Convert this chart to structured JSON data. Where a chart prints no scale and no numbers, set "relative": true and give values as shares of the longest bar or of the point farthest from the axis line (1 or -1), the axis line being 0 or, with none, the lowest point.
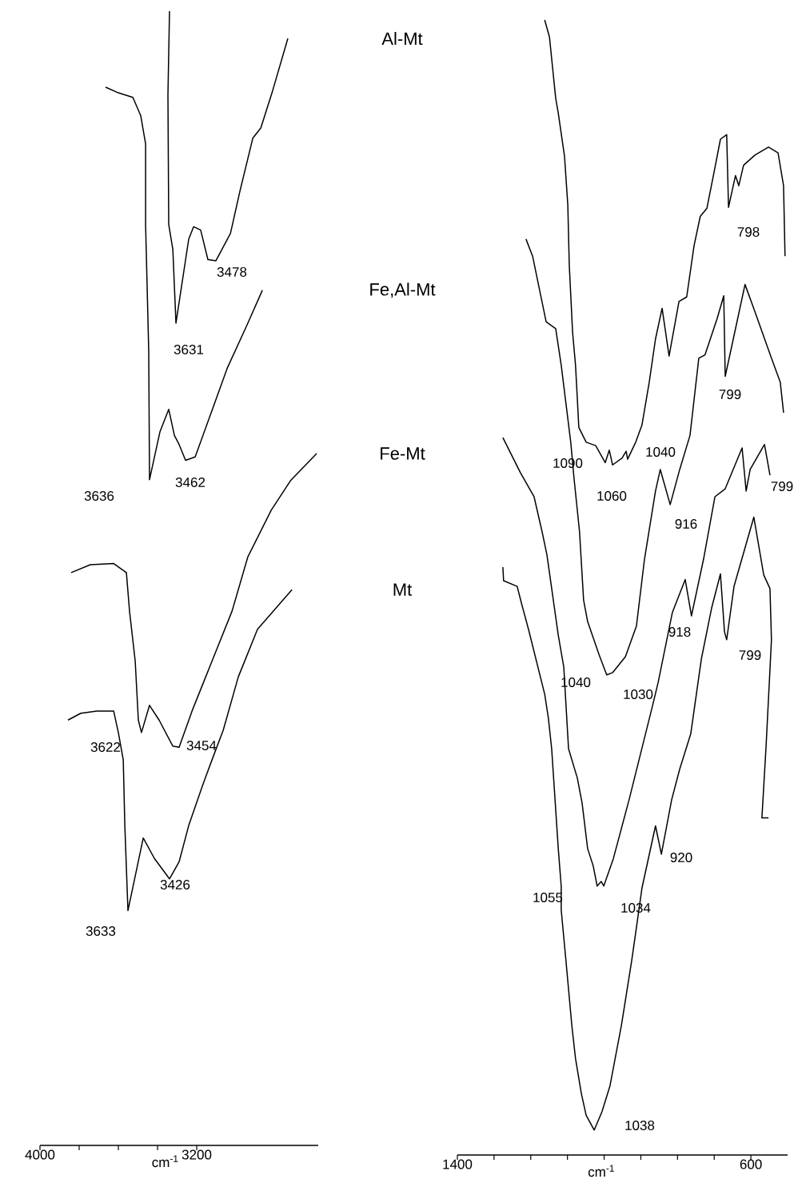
{
  "chart_data": [
    {
      "type": "line",
      "relative": true,
      "xlabel": "cm$^{-1}$",
      "xlim": [
        4000,
        2580
      ],
      "xticks": [
        4000,
        {
          "value": 3800,
          "label": null
        },
        {
          "value": 3600,
          "label": null
        },
        {
          "value": 3400,
          "label": null
        },
        3200
      ],
      "series": [
        {
          "name": "Al-Mt",
          "color": "#000000",
          "x": [
            3339,
            3347,
            3343,
            3322,
            3306,
            3241,
            3216,
            3180,
            3143,
            3102,
            3028,
            2980,
            2914,
            2873,
            2816,
            2735
          ],
          "values": [
            1.0,
            0.926,
            0.812,
            0.79,
            0.725,
            0.799,
            0.81,
            0.807,
            0.781,
            0.78,
            0.804,
            0.841,
            0.888,
            0.897,
            0.928,
            0.976
          ]
        },
        {
          "name": "Fe,Al-Mt",
          "color": "#000000",
          "x": [
            3665,
            3600,
            3526,
            3486,
            3461,
            3461,
            3445,
            3441,
            3388,
            3343,
            3314,
            3290,
            3257,
            3208,
            3143,
            3045,
            2947,
            2865
          ],
          "values": [
            0.933,
            0.928,
            0.924,
            0.908,
            0.883,
            0.812,
            0.7,
            0.587,
            0.629,
            0.649,
            0.626,
            0.618,
            0.604,
            0.607,
            0.638,
            0.685,
            0.722,
            0.754
          ]
        },
        {
          "name": "Fe-Mt",
          "color": "#000000",
          "x": [
            3841,
            3743,
            3624,
            3559,
            3543,
            3514,
            3498,
            3482,
            3441,
            3392,
            3322,
            3290,
            3224,
            3122,
            3020,
            2939,
            2820,
            2722,
            2588
          ],
          "values": [
            0.505,
            0.512,
            0.513,
            0.505,
            0.471,
            0.427,
            0.375,
            0.364,
            0.388,
            0.375,
            0.352,
            0.351,
            0.383,
            0.427,
            0.471,
            0.519,
            0.56,
            0.586,
            0.61
          ]
        },
        {
          "name": "Mt",
          "color": "#000000",
          "x": [
            3857,
            3792,
            3710,
            3624,
            3600,
            3575,
            3567,
            3551,
            3473,
            3416,
            3339,
            3290,
            3241,
            3171,
            3122,
            3065,
            2988,
            2890,
            2714
          ],
          "values": [
            0.375,
            0.381,
            0.383,
            0.383,
            0.364,
            0.34,
            0.282,
            0.207,
            0.271,
            0.253,
            0.235,
            0.25,
            0.282,
            0.317,
            0.34,
            0.366,
            0.413,
            0.455,
            0.49
          ]
        }
      ],
      "annotations": [
        "3478",
        "3631",
        "3636",
        "3462",
        "3622",
        "3454",
        "3426",
        "3633"
      ]
    },
    {
      "type": "line",
      "relative": true,
      "xlabel": "cm$^{-1}$",
      "xlim": [
        1400,
        500
      ],
      "xticks": [
        1400,
        {
          "value": 1300,
          "label": null
        },
        {
          "value": 1200,
          "label": null
        },
        {
          "value": 1100,
          "label": null
        },
        {
          "value": 1000,
          "label": null
        },
        {
          "value": 900,
          "label": null
        },
        {
          "value": 800,
          "label": null
        },
        {
          "value": 700,
          "label": null
        },
        600
      ],
      "series": [
        {
          "color": "#000000",
          "x": [
            1162,
            1149,
            1132,
            1125,
            1108,
            1099,
            1095,
            1086,
            1078,
            1073,
            1069,
            1049,
            1023,
            997,
            986,
            977,
            951,
            940,
            936,
            914,
            897,
            877,
            860,
            842,
            823,
            796,
            775,
            755,
            738,
            720,
            701,
            683,
            666,
            661,
            642,
            633,
            620,
            589,
            552,
            526,
            511,
            507
          ],
          "values": [
            1.0,
            0.985,
            0.931,
            0.918,
            0.88,
            0.837,
            0.784,
            0.725,
            0.696,
            0.666,
            0.641,
            0.628,
            0.625,
            0.61,
            0.621,
            0.608,
            0.614,
            0.62,
            0.613,
            0.628,
            0.643,
            0.681,
            0.719,
            0.746,
            0.704,
            0.752,
            0.756,
            0.801,
            0.827,
            0.834,
            0.865,
            0.895,
            0.899,
            0.835,
            0.863,
            0.854,
            0.872,
            0.881,
            0.888,
            0.883,
            0.854,
            0.792
          ]
        },
        {
          "color": "#000000",
          "x": [
            1213,
            1195,
            1158,
            1132,
            1117,
            1091,
            1082,
            1067,
            1056,
            1045,
            1014,
            993,
            977,
            942,
            912,
            890,
            860,
            847,
            820,
            794,
            766,
            742,
            725,
            692,
            674,
            670,
            642,
            616,
            589,
            544,
            520,
            511
          ],
          "values": [
            0.807,
            0.792,
            0.734,
            0.728,
            0.696,
            0.628,
            0.596,
            0.549,
            0.489,
            0.47,
            0.441,
            0.423,
            0.425,
            0.439,
            0.466,
            0.525,
            0.585,
            0.604,
            0.573,
            0.604,
            0.634,
            0.702,
            0.705,
            0.737,
            0.757,
            0.686,
            0.728,
            0.767,
            0.743,
            0.702,
            0.681,
            0.654
          ]
        },
        {
          "color": "#000000",
          "x": [
            1276,
            1228,
            1191,
            1169,
            1156,
            1125,
            1110,
            1097,
            1073,
            1060,
            1045,
            1030,
            1019,
            1008,
            1001,
            975,
            932,
            868,
            853,
            814,
            779,
            762,
            729,
            698,
            670,
            624,
            613,
            602,
            563,
            548
          ],
          "values": [
            0.632,
            0.601,
            0.58,
            0.549,
            0.529,
            0.458,
            0.43,
            0.358,
            0.332,
            0.31,
            0.27,
            0.255,
            0.237,
            0.241,
            0.237,
            0.261,
            0.313,
            0.396,
            0.416,
            0.478,
            0.507,
            0.475,
            0.525,
            0.58,
            0.587,
            0.623,
            0.585,
            0.604,
            0.626,
            0.599
          ]
        },
        {
          "color": "#000000",
          "x": [
            1276,
            1274,
            1237,
            1226,
            1206,
            1162,
            1152,
            1143,
            1125,
            1117,
            1117,
            1104,
            1088,
            1078,
            1062,
            1049,
            1027,
            1006,
            984,
            953,
            925,
            910,
            897,
            860,
            844,
            816,
            794,
            764,
            735,
            707,
            683,
            672,
            666,
            646,
            592,
            565,
            548,
            544,
            548,
            559,
            570,
            552
          ],
          "values": [
            0.518,
            0.506,
            0.501,
            0.487,
            0.463,
            0.406,
            0.385,
            0.358,
            0.27,
            0.237,
            0.216,
            0.171,
            0.114,
            0.085,
            0.054,
            0.035,
            0.022,
            0.038,
            0.061,
            0.114,
            0.171,
            0.205,
            0.235,
            0.29,
            0.265,
            0.313,
            0.34,
            0.371,
            0.437,
            0.482,
            0.512,
            0.461,
            0.454,
            0.501,
            0.562,
            0.511,
            0.499,
            0.454,
            0.428,
            0.358,
            0.297,
            0.297
          ]
        }
      ],
      "annotations": [
        "1090",
        "1060",
        "1040",
        "798",
        "799",
        "1040",
        "1030",
        "916",
        "799",
        "918",
        "799",
        "1055",
        "1034",
        "920",
        "1038"
      ]
    }
  ]
}
